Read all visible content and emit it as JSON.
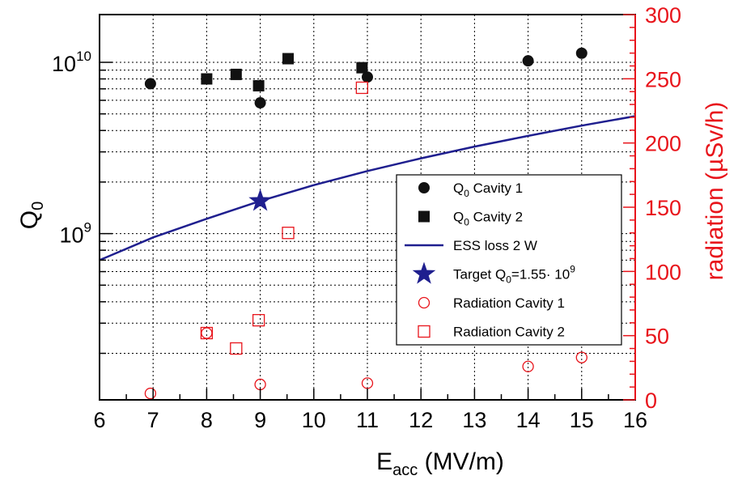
{
  "chart_data": {
    "type": "scatter",
    "title": "",
    "xlabel": {
      "main": "E",
      "sub": "acc",
      "rest": " (MV/m)"
    },
    "ylabel": {
      "main": "Q",
      "sub": "0"
    },
    "y2label": "radiation (µSv/h)",
    "xlim": [
      6,
      16
    ],
    "ylim": [
      107000000.0,
      19000000000.0
    ],
    "ylog": true,
    "y2lim": [
      0,
      300
    ],
    "grid": true,
    "x_ticks": [
      "6",
      "7",
      "8",
      "9",
      "10",
      "11",
      "12",
      "13",
      "14",
      "15",
      "16"
    ],
    "y_tick_labels": [
      {
        "value": 1000000000.0,
        "base": "10",
        "exp": "9"
      },
      {
        "value": 10000000000.0,
        "base": "10",
        "exp": "10"
      }
    ],
    "y2_ticks": [
      "0",
      "50",
      "100",
      "150",
      "200",
      "250",
      "300"
    ],
    "colors": {
      "axis": "#000000",
      "right_axis": "#e8141b",
      "line": "#1f1f8f",
      "marker": "#111111"
    },
    "series": [
      {
        "name": "Q0 Cavity 1",
        "axis": "left",
        "marker": "filled-circle",
        "x": [
          6.95,
          9.0,
          11.0,
          14.0,
          15.0
        ],
        "y": [
          7500000000.0,
          5800000000.0,
          8200000000.0,
          10200000000.0,
          11300000000.0
        ]
      },
      {
        "name": "Q0 Cavity 2",
        "axis": "left",
        "marker": "filled-square",
        "x": [
          8.0,
          8.55,
          8.97,
          9.52,
          10.9
        ],
        "y": [
          8000000000.0,
          8500000000.0,
          7300000000.0,
          10500000000.0,
          9300000000.0
        ]
      },
      {
        "name": "ESS loss 2 W",
        "axis": "left",
        "marker": "line",
        "x": [
          6,
          7,
          8,
          9,
          10,
          11,
          12,
          13,
          14,
          15,
          16
        ],
        "y": [
          700000000.0,
          950000000.0,
          1220000000.0,
          1550000000.0,
          1920000000.0,
          2320000000.0,
          2750000000.0,
          3220000000.0,
          3720000000.0,
          4270000000.0,
          4850000000.0
        ]
      },
      {
        "name": "Target Q0=1.55· 10^9",
        "axis": "left",
        "marker": "star",
        "x": [
          9.0
        ],
        "y": [
          1550000000.0
        ]
      },
      {
        "name": "Radiation Cavity 1",
        "axis": "right",
        "marker": "open-circle",
        "x": [
          6.95,
          8.0,
          9.0,
          11.0,
          14.0,
          15.0
        ],
        "y": [
          5,
          52,
          12,
          13,
          26,
          33
        ]
      },
      {
        "name": "Radiation Cavity 2",
        "axis": "right",
        "marker": "open-square",
        "x": [
          8.0,
          8.55,
          8.97,
          9.52,
          10.9
        ],
        "y": [
          52,
          40,
          62,
          130,
          243
        ]
      }
    ],
    "legend": {
      "placement": "center-right",
      "entries": [
        {
          "marker": "filled-circle",
          "label_main": "Q",
          "label_sub": "0",
          "label_rest": " Cavity 1"
        },
        {
          "marker": "filled-square",
          "label_main": "Q",
          "label_sub": "0",
          "label_rest": " Cavity 2"
        },
        {
          "marker": "line",
          "label_main": "ESS loss 2 W",
          "label_sub": "",
          "label_rest": ""
        },
        {
          "marker": "star",
          "label_main": "Target Q",
          "label_sub": "0",
          "label_rest": "=1.55· 10",
          "label_sup": "9"
        },
        {
          "marker": "open-circle",
          "label_main": "Radiation Cavity 1",
          "label_sub": "",
          "label_rest": ""
        },
        {
          "marker": "open-square",
          "label_main": "Radiation Cavity 2",
          "label_sub": "",
          "label_rest": ""
        }
      ]
    }
  }
}
